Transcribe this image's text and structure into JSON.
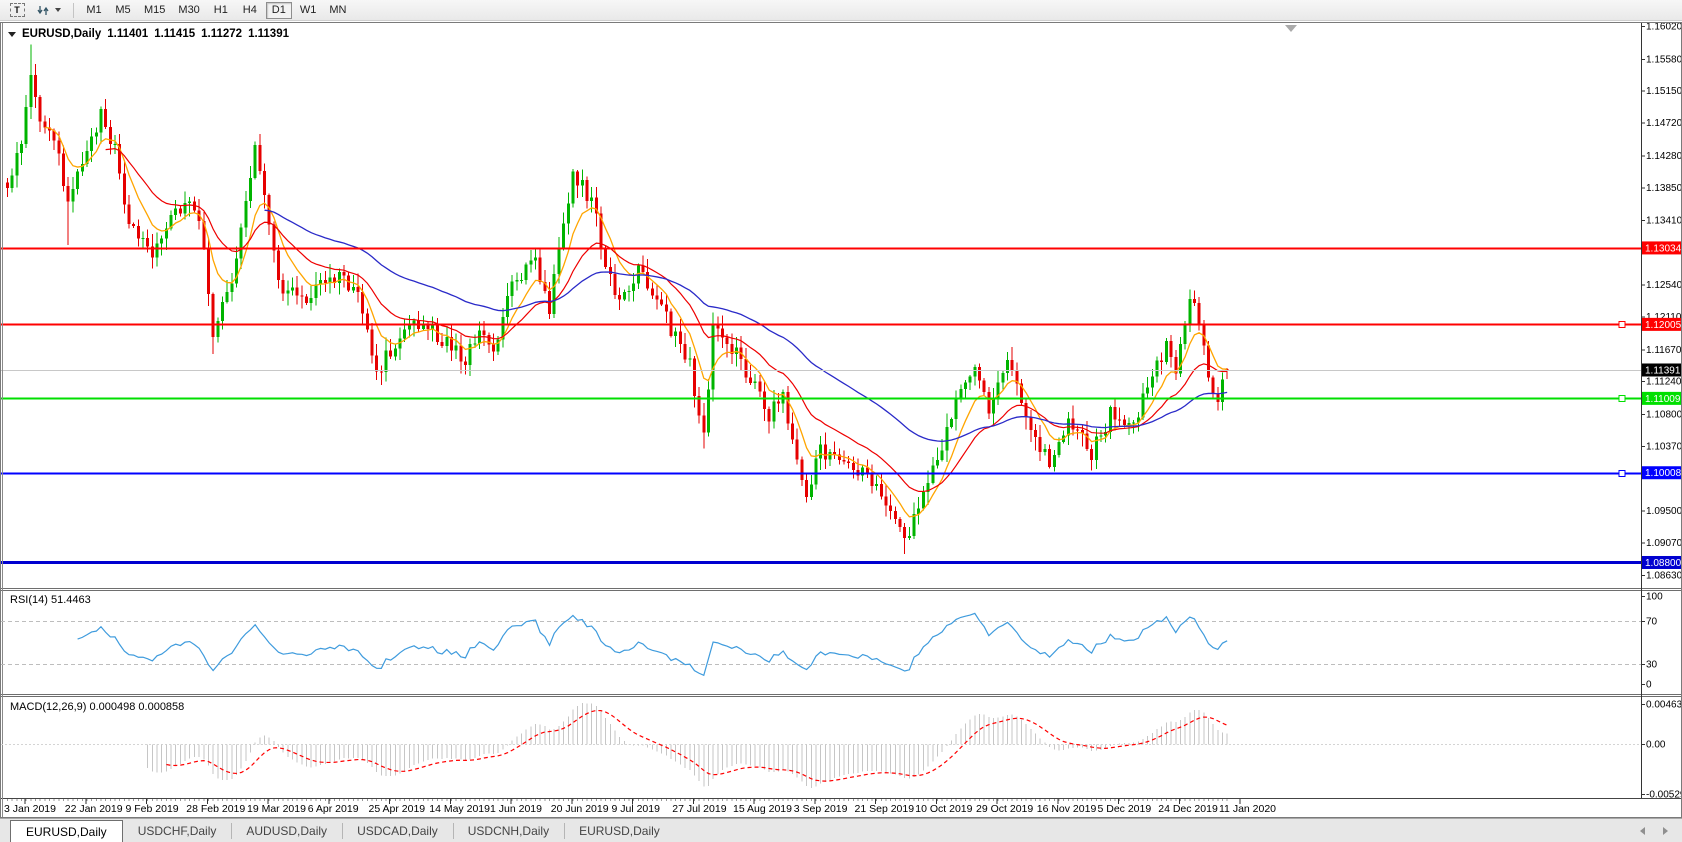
{
  "toolbar": {
    "text_tool": "T",
    "timeframes": [
      "M1",
      "M5",
      "M15",
      "M30",
      "H1",
      "H4",
      "D1",
      "W1",
      "MN"
    ],
    "active_timeframe": "D1"
  },
  "chart": {
    "title_symbol": "EURUSD,Daily",
    "ohlc": {
      "open": "1.11401",
      "high": "1.11415",
      "low": "1.11272",
      "close": "1.11391"
    }
  },
  "price_axis": {
    "ticks": [
      "1.16020",
      "1.15580",
      "1.15150",
      "1.14720",
      "1.14280",
      "1.13850",
      "1.13410",
      "1.12540",
      "1.12110",
      "1.11670",
      "1.11240",
      "1.10800",
      "1.10370",
      "1.09500",
      "1.09070",
      "1.08630"
    ]
  },
  "hlines": [
    {
      "price": 1.13034,
      "label": "1.13034",
      "color": "#FF0000",
      "width": 2,
      "handle": false
    },
    {
      "price": 1.12005,
      "label": "1.12005",
      "color": "#FF0000",
      "width": 2,
      "handle": true
    },
    {
      "price": 1.11391,
      "label": "1.11391",
      "color": "#C8C8C8",
      "width": 1,
      "label_bg": "#000000",
      "price_line": true
    },
    {
      "price": 1.11009,
      "label": "1.11009",
      "color": "#00DF00",
      "width": 2,
      "handle": true
    },
    {
      "price": 1.10008,
      "label": "1.10008",
      "color": "#0000FF",
      "width": 2,
      "handle": true
    },
    {
      "price": 1.088,
      "label": "1.08800",
      "color": "#0000D0",
      "width": 3,
      "handle": false
    }
  ],
  "rsi_panel": {
    "label": "RSI(14) 51.4463",
    "ticks": [
      "100",
      "70",
      "30",
      "0"
    ],
    "line_color": "#3E9BDD",
    "level_values": [
      70,
      30
    ]
  },
  "macd_panel": {
    "label": "MACD(12,26,9) 0.000498 0.000858",
    "ticks": [
      "0.00463",
      "0.00",
      "-0.00529"
    ],
    "histogram_color": "#C6C6C6",
    "signal_color": "#FF0000"
  },
  "date_axis": [
    "3 Jan 2019",
    "22 Jan 2019",
    "9 Feb 2019",
    "28 Feb 2019",
    "19 Mar 2019",
    "6 Apr 2019",
    "25 Apr 2019",
    "14 May 2019",
    "1 Jun 2019",
    "20 Jun 2019",
    "9 Jul 2019",
    "27 Jul 2019",
    "15 Aug 2019",
    "3 Sep 2019",
    "21 Sep 2019",
    "10 Oct 2019",
    "29 Oct 2019",
    "16 Nov 2019",
    "5 Dec 2019",
    "24 Dec 2019",
    "11 Jan 2020"
  ],
  "tabs": {
    "items": [
      "EURUSD,Daily",
      "USDCHF,Daily",
      "AUDUSD,Daily",
      "USDCAD,Daily",
      "USDCNH,Daily",
      "EURUSD,Daily"
    ],
    "active_index": 0
  },
  "colors": {
    "up": "#00B400",
    "down": "#E60000",
    "ma_fast": "#FFA500",
    "ma_mid": "#EE0000",
    "ma_slow": "#2A2AC8",
    "current_price_line": "#C8C8C8"
  },
  "chart_data": {
    "type": "candlestick",
    "symbol": "EURUSD",
    "timeframe": "Daily",
    "current_bar": {
      "open": 1.11401,
      "high": 1.11415,
      "low": 1.11272,
      "close": 1.11391
    },
    "y_axis_range": [
      1.0863,
      1.1602
    ],
    "horizontal_levels": [
      1.13034,
      1.12005,
      1.11391,
      1.11009,
      1.10008,
      1.088
    ],
    "indicators": [
      {
        "name": "RSI",
        "period": 14,
        "value": 51.4463,
        "levels": [
          70,
          30
        ],
        "range": [
          0,
          100
        ]
      },
      {
        "name": "MACD",
        "fast": 12,
        "slow": 26,
        "signal_period": 9,
        "value": 0.000498,
        "signal_value": 0.000858,
        "axis_max": 0.00463,
        "axis_min": -0.00529
      }
    ],
    "x_start": "3 Jan 2019",
    "x_end": "11 Jan 2020",
    "bars": 262,
    "price_path": [
      [
        0,
        1.139
      ],
      [
        3,
        1.144
      ],
      [
        5,
        1.1545
      ],
      [
        7,
        1.148
      ],
      [
        10,
        1.145
      ],
      [
        13,
        1.1365
      ],
      [
        17,
        1.1425
      ],
      [
        20,
        1.148
      ],
      [
        23,
        1.144
      ],
      [
        26,
        1.133
      ],
      [
        31,
        1.1295
      ],
      [
        35,
        1.134
      ],
      [
        39,
        1.137
      ],
      [
        42,
        1.131
      ],
      [
        44,
        1.1185
      ],
      [
        48,
        1.1255
      ],
      [
        53,
        1.1435
      ],
      [
        56,
        1.133
      ],
      [
        58,
        1.1255
      ],
      [
        64,
        1.1225
      ],
      [
        69,
        1.127
      ],
      [
        75,
        1.1245
      ],
      [
        79,
        1.1135
      ],
      [
        84,
        1.119
      ],
      [
        88,
        1.1205
      ],
      [
        93,
        1.118
      ],
      [
        98,
        1.1155
      ],
      [
        101,
        1.119
      ],
      [
        104,
        1.1165
      ],
      [
        108,
        1.1255
      ],
      [
        113,
        1.129
      ],
      [
        116,
        1.1225
      ],
      [
        121,
        1.14
      ],
      [
        125,
        1.137
      ],
      [
        130,
        1.123
      ],
      [
        135,
        1.127
      ],
      [
        140,
        1.122
      ],
      [
        146,
        1.1145
      ],
      [
        149,
        1.1045
      ],
      [
        151,
        1.1195
      ],
      [
        154,
        1.118
      ],
      [
        158,
        1.114
      ],
      [
        163,
        1.108
      ],
      [
        166,
        1.11
      ],
      [
        171,
        1.0975
      ],
      [
        174,
        1.103
      ],
      [
        178,
        1.101
      ],
      [
        182,
        1.1
      ],
      [
        186,
        1.099
      ],
      [
        190,
        1.0945
      ],
      [
        192,
        1.0905
      ],
      [
        196,
        1.097
      ],
      [
        200,
        1.104
      ],
      [
        204,
        1.112
      ],
      [
        207,
        1.115
      ],
      [
        210,
        1.1085
      ],
      [
        214,
        1.115
      ],
      [
        218,
        1.1075
      ],
      [
        223,
        1.1015
      ],
      [
        227,
        1.107
      ],
      [
        232,
        1.1025
      ],
      [
        236,
        1.108
      ],
      [
        241,
        1.1065
      ],
      [
        245,
        1.114
      ],
      [
        248,
        1.117
      ],
      [
        250,
        1.1145
      ],
      [
        253,
        1.1238
      ],
      [
        255,
        1.12
      ],
      [
        257,
        1.1125
      ],
      [
        259,
        1.1095
      ],
      [
        261,
        1.1139
      ]
    ]
  }
}
